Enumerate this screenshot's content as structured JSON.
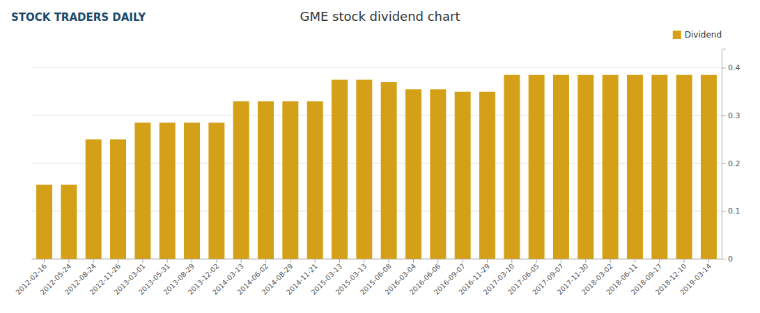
{
  "chart_data": {
    "type": "bar",
    "title": "GME stock dividend chart",
    "annotations": [
      "STOCK TRADERS DAILY"
    ],
    "categories": [
      "2012-02-16",
      "2012-05-24",
      "2012-08-24",
      "2012-11-26",
      "2013-03-01",
      "2013-05-31",
      "2013-08-29",
      "2013-12-02",
      "2014-03-13",
      "2014-06-02",
      "2014-08-29",
      "2014-11-21",
      "2015-03-13",
      "2015-03-13",
      "2015-06-08",
      "2016-03-04",
      "2016-06-06",
      "2016-09-07",
      "2016-11-29",
      "2017-03-10",
      "2017-06-05",
      "2017-09-07",
      "2017-11-30",
      "2018-03-02",
      "2018-06-11",
      "2018-09-17",
      "2018-12-10",
      "2019-03-14"
    ],
    "series": [
      {
        "name": "Dividend",
        "color": "#D4A017",
        "values": [
          0.155,
          0.155,
          0.25,
          0.25,
          0.285,
          0.285,
          0.285,
          0.285,
          0.33,
          0.33,
          0.33,
          0.33,
          0.375,
          0.375,
          0.37,
          0.355,
          0.355,
          0.35,
          0.35,
          0.385,
          0.385,
          0.385,
          0.385,
          0.385,
          0.385,
          0.385,
          0.385,
          0.385
        ]
      }
    ],
    "ylim": [
      0,
      0.44
    ],
    "yticks": [
      0,
      0.1,
      0.2,
      0.3,
      0.4
    ],
    "grid": true,
    "legend": "top"
  }
}
